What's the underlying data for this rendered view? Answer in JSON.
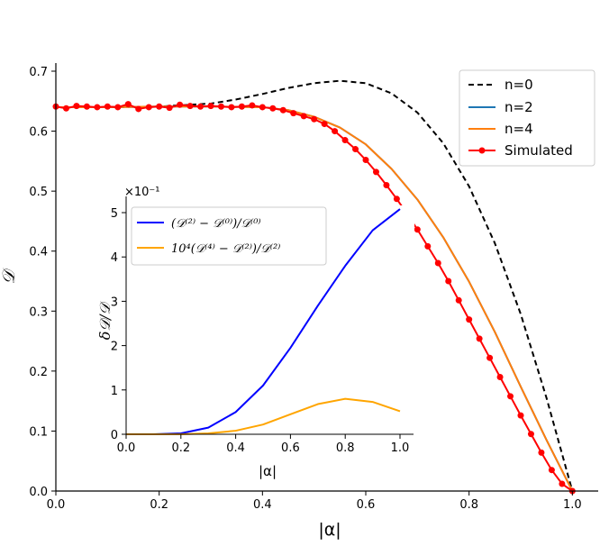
{
  "chart_data": [
    {
      "type": "line",
      "title": "",
      "xlabel": "|α|",
      "ylabel": "𝒟",
      "xlim": [
        0,
        1.05
      ],
      "ylim": [
        0,
        0.72
      ],
      "xticks": [
        0.0,
        0.2,
        0.4,
        0.6,
        0.8,
        1.0
      ],
      "xtick_labels": [
        "0.0",
        "0.2",
        "0.4",
        "0.6",
        "0.8",
        "1.0"
      ],
      "yticks": [
        0.0,
        0.1,
        0.2,
        0.3,
        0.4,
        0.5,
        0.6,
        0.7
      ],
      "ytick_labels": [
        "0.0",
        "0.1",
        "0.2",
        "0.3",
        "0.4",
        "0.5",
        "0.6",
        "0.7"
      ],
      "legend_position": "top-right",
      "series": [
        {
          "name": "n=0",
          "color": "#000000",
          "style": "dashed",
          "x": [
            0.0,
            0.1,
            0.2,
            0.3,
            0.35,
            0.4,
            0.45,
            0.5,
            0.55,
            0.6,
            0.65,
            0.7,
            0.75,
            0.8,
            0.85,
            0.9,
            0.95,
            1.0
          ],
          "y": [
            0.64,
            0.64,
            0.641,
            0.646,
            0.653,
            0.662,
            0.672,
            0.68,
            0.684,
            0.68,
            0.663,
            0.631,
            0.58,
            0.508,
            0.413,
            0.295,
            0.155,
            0.0
          ]
        },
        {
          "name": "n=2",
          "color": "#1f77b4",
          "style": "solid",
          "x": [
            0.0,
            0.1,
            0.2,
            0.3,
            0.4,
            0.45,
            0.5,
            0.55,
            0.6,
            0.65,
            0.7,
            0.75,
            0.8,
            0.85,
            0.9,
            0.95,
            1.0
          ],
          "y": [
            0.64,
            0.64,
            0.641,
            0.641,
            0.64,
            0.635,
            0.624,
            0.606,
            0.578,
            0.537,
            0.486,
            0.423,
            0.349,
            0.265,
            0.174,
            0.085,
            0.0
          ]
        },
        {
          "name": "n=4",
          "color": "#ff7f0e",
          "style": "solid",
          "x": [
            0.0,
            0.1,
            0.2,
            0.3,
            0.4,
            0.45,
            0.5,
            0.55,
            0.6,
            0.65,
            0.7,
            0.75,
            0.8,
            0.85,
            0.9,
            0.95,
            1.0
          ],
          "y": [
            0.64,
            0.64,
            0.641,
            0.641,
            0.64,
            0.635,
            0.624,
            0.606,
            0.578,
            0.537,
            0.486,
            0.423,
            0.349,
            0.265,
            0.174,
            0.085,
            0.0
          ]
        },
        {
          "name": "Simulated",
          "color": "#ff0000",
          "style": "solid-markers",
          "x": [
            0.0,
            0.02,
            0.04,
            0.06,
            0.08,
            0.1,
            0.12,
            0.14,
            0.16,
            0.18,
            0.2,
            0.22,
            0.24,
            0.26,
            0.28,
            0.3,
            0.32,
            0.34,
            0.36,
            0.38,
            0.4,
            0.42,
            0.44,
            0.46,
            0.48,
            0.5,
            0.52,
            0.54,
            0.56,
            0.58,
            0.6,
            0.62,
            0.64,
            0.66,
            0.68,
            0.7,
            0.72,
            0.74,
            0.76,
            0.78,
            0.8,
            0.82,
            0.84,
            0.86,
            0.88,
            0.9,
            0.92,
            0.94,
            0.96,
            0.98,
            1.0
          ],
          "y": [
            0.641,
            0.638,
            0.642,
            0.641,
            0.64,
            0.641,
            0.64,
            0.645,
            0.637,
            0.64,
            0.641,
            0.639,
            0.644,
            0.642,
            0.641,
            0.642,
            0.641,
            0.64,
            0.641,
            0.643,
            0.64,
            0.638,
            0.635,
            0.63,
            0.625,
            0.62,
            0.612,
            0.6,
            0.585,
            0.57,
            0.552,
            0.532,
            0.51,
            0.487,
            0.462,
            0.436,
            0.408,
            0.38,
            0.35,
            0.318,
            0.286,
            0.254,
            0.222,
            0.19,
            0.158,
            0.126,
            0.095,
            0.064,
            0.035,
            0.012,
            0.0
          ]
        }
      ]
    },
    {
      "type": "line",
      "title": "",
      "position": "inset",
      "xlabel": "|α|",
      "ylabel": "δ𝒟/𝒟",
      "y_multiplier": "×10⁻¹",
      "xlim": [
        0,
        1.04
      ],
      "ylim": [
        0,
        5.4
      ],
      "xticks": [
        0.0,
        0.2,
        0.4,
        0.6,
        0.8,
        1.0
      ],
      "xtick_labels": [
        "0.0",
        "0.2",
        "0.4",
        "0.6",
        "0.8",
        "1.0"
      ],
      "yticks": [
        0,
        1,
        2,
        3,
        4,
        5
      ],
      "ytick_labels": [
        "0",
        "1",
        "2",
        "3",
        "4",
        "5"
      ],
      "legend_position": "top-left",
      "series": [
        {
          "name": "(𝒟⁽²⁾ − 𝒟⁽⁰⁾)/𝒟⁽⁰⁾",
          "color": "#0000ff",
          "x": [
            0.0,
            0.1,
            0.2,
            0.3,
            0.4,
            0.5,
            0.6,
            0.7,
            0.8,
            0.9,
            1.0
          ],
          "y": [
            0.0,
            0.0,
            0.02,
            0.15,
            0.5,
            1.1,
            1.95,
            2.9,
            3.8,
            4.6,
            5.08
          ]
        },
        {
          "name": "10⁴(𝒟⁽⁴⁾ − 𝒟⁽²⁾)/𝒟⁽²⁾",
          "color": "#ffa500",
          "x": [
            0.0,
            0.1,
            0.2,
            0.3,
            0.4,
            0.5,
            0.6,
            0.7,
            0.8,
            0.9,
            1.0
          ],
          "y": [
            0.0,
            0.0,
            0.0,
            0.02,
            0.08,
            0.22,
            0.45,
            0.68,
            0.8,
            0.73,
            0.52
          ]
        }
      ]
    }
  ]
}
